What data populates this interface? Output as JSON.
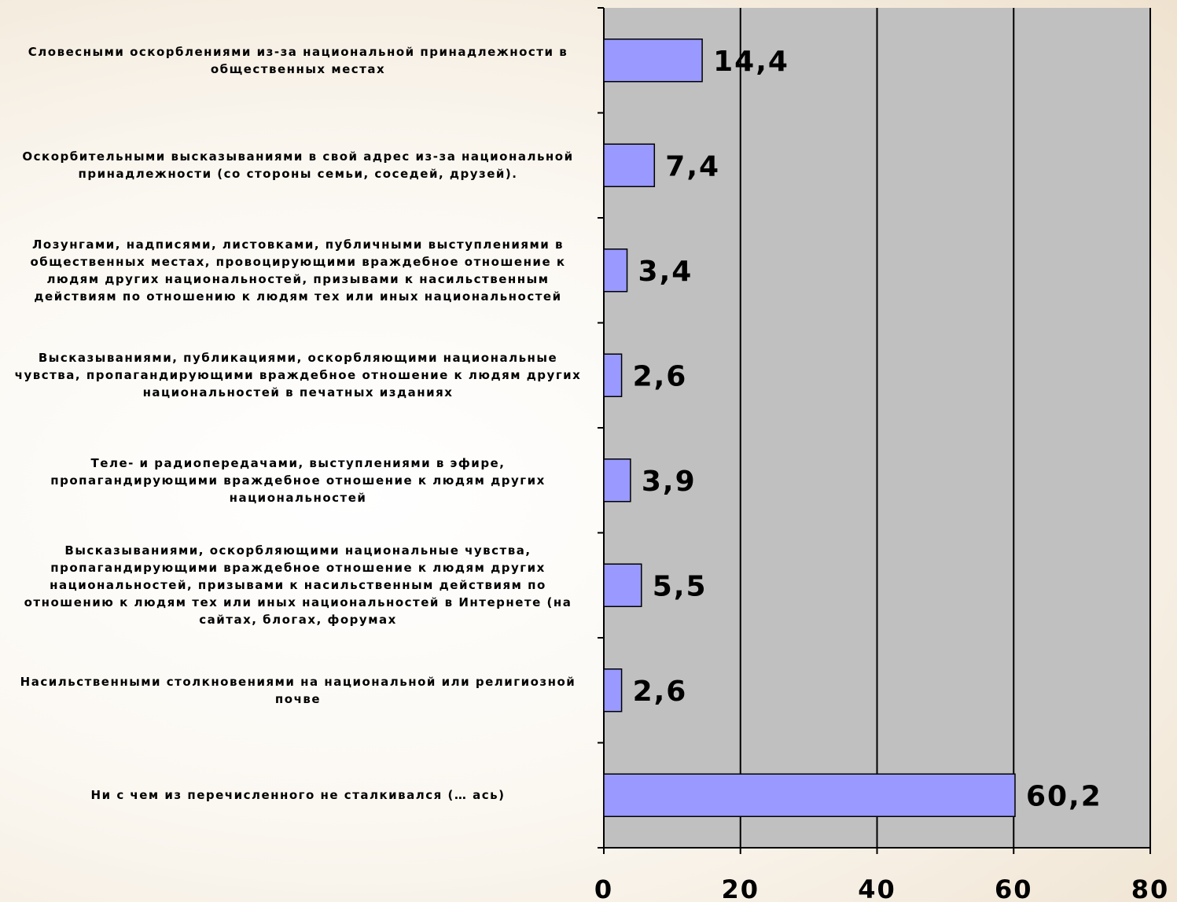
{
  "chart_data": {
    "type": "bar",
    "orientation": "horizontal",
    "categories": [
      "Словесными оскорблениями из-за национальной принадлежности в общественных местах",
      "Оскорбительными высказываниями в свой адрес из-за национальной принадлежности (со стороны семьи, соседей, друзей).",
      "Лозунгами, надписями, листовками, публичными выступлениями в общественных местах, провоцирующими враждебное отношение к людям других национальностей, призывами к насильственным действиям по отношению к людям тех или иных национальностей",
      "Высказываниями, публикациями, оскорбляющими национальные чувства, пропагандирующими враждебное отношение к людям других национальностей в печатных изданиях",
      "Теле- и радиопередачами, выступлениями в эфире, пропагандирующими враждебное отношение к людям других национальностей",
      "Высказываниями, оскорбляющими национальные чувства, пропагандирующими враждебное отношение к людям других национальностей, призывами к насильственным действиям по отношению к людям тех или иных национальностей в Интернете (на сайтах, блогах, форумах",
      "Насильственными столкновениями на национальной или религиозной почве",
      "Ни с чем из перечисленного не сталкивался (… ась)"
    ],
    "values": [
      14.4,
      7.4,
      3.4,
      2.6,
      3.9,
      5.5,
      2.6,
      60.2
    ],
    "value_labels": [
      "14,4",
      "7,4",
      "3,4",
      "2,6",
      "3,9",
      "5,5",
      "2,6",
      "60,2"
    ],
    "xlim": [
      0,
      80
    ],
    "xticks": [
      0,
      20,
      40,
      60,
      80
    ],
    "xtick_labels": [
      "0",
      "20",
      "40",
      "60",
      "80"
    ],
    "grid": true,
    "colors": {
      "bar": "#9999ff",
      "plot_background": "#c0c0c0",
      "bar_border": "#000000"
    }
  }
}
